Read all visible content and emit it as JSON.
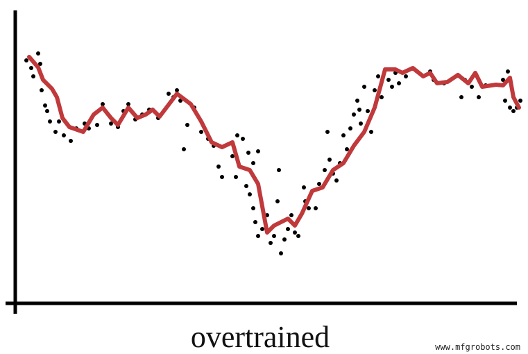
{
  "chart_data": {
    "type": "scatter",
    "xlabel": "overtrained",
    "watermark": "www.mfgrobots.com",
    "xlim": [
      0,
      723
    ],
    "ylim": [
      0,
      422
    ],
    "series": [
      {
        "type": "scatter",
        "color": "#000000",
        "x": [
          16,
          23,
          26,
          33,
          36,
          38,
          43,
          46,
          50,
          58,
          63,
          70,
          80,
          88,
          100,
          106,
          118,
          126,
          138,
          148,
          156,
          163,
          173,
          183,
          193,
          206,
          221,
          228,
          233,
          238,
          243,
          248,
          258,
          268,
          278,
          286,
          293,
          298,
          313,
          318,
          320,
          328,
          333,
          336,
          343,
          350,
          338,
          343,
          346,
          350,
          356,
          363,
          368,
          373,
          378,
          380,
          383,
          388,
          393,
          398,
          403,
          408,
          416,
          418,
          423,
          433,
          438,
          446,
          450,
          453,
          458,
          463,
          468,
          473,
          478,
          483,
          488,
          493,
          496,
          498,
          503,
          508,
          513,
          518,
          523,
          528,
          538,
          543,
          548,
          553,
          563,
          578,
          598,
          603,
          618,
          638,
          643,
          648,
          658,
          668,
          678,
          703,
          710,
          706,
          713,
          718,
          728,
          723
        ],
        "values": [
          350,
          339,
          327,
          360,
          345,
          307,
          285,
          277,
          262,
          247,
          262,
          242,
          234,
          252,
          259,
          252,
          257,
          287,
          259,
          254,
          277,
          287,
          265,
          272,
          279,
          267,
          302,
          297,
          307,
          292,
          222,
          257,
          282,
          247,
          237,
          227,
          197,
          182,
          212,
          182,
          242,
          237,
          169,
          217,
          202,
          219,
          157,
          137,
          117,
          97,
          107,
          127,
          87,
          97,
          147,
          192,
          72,
          92,
          107,
          127,
          102,
          97,
          167,
          147,
          137,
          137,
          172,
          192,
          247,
          207,
          187,
          177,
          202,
          242,
          222,
          252,
          272,
          292,
          279,
          259,
          312,
          277,
          247,
          307,
          327,
          297,
          322,
          312,
          332,
          317,
          327,
          335,
          334,
          322,
          317,
          329,
          297,
          322,
          312,
          297,
          314,
          322,
          334,
          292,
          282,
          277,
          292,
          282
        ]
      },
      {
        "type": "line",
        "color": "#c0393b",
        "x": [
          20,
          33,
          40,
          53,
          60,
          68,
          78,
          98,
          113,
          126,
          138,
          148,
          163,
          176,
          188,
          198,
          208,
          233,
          253,
          268,
          283,
          298,
          313,
          323,
          338,
          350,
          363,
          373,
          383,
          393,
          403,
          413,
          428,
          443,
          458,
          473,
          488,
          503,
          518,
          533,
          548,
          558,
          573,
          588,
          598,
          608,
          623,
          638,
          653,
          663,
          673,
          693,
          703,
          713,
          718,
          726
        ],
        "values": [
          355,
          340,
          322,
          309,
          297,
          267,
          254,
          247,
          272,
          282,
          267,
          257,
          282,
          267,
          272,
          279,
          269,
          302,
          287,
          262,
          232,
          225,
          232,
          197,
          192,
          172,
          102,
          112,
          117,
          122,
          112,
          129,
          162,
          167,
          192,
          202,
          227,
          247,
          282,
          337,
          337,
          332,
          339,
          327,
          332,
          317,
          319,
          329,
          317,
          332,
          312,
          315,
          314,
          325,
          297,
          282
        ]
      }
    ]
  }
}
